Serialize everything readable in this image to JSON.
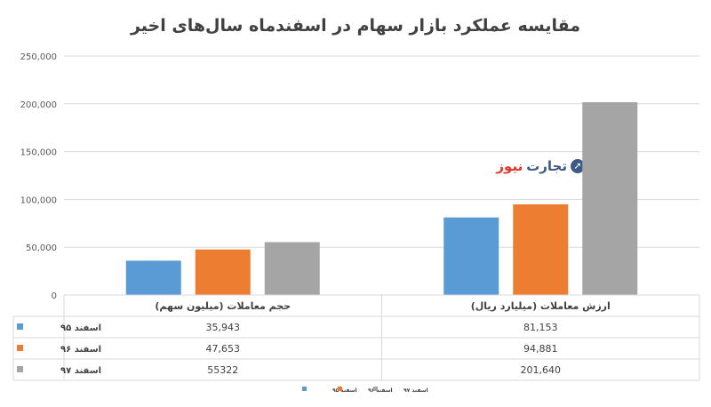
{
  "chart_data": {
    "type": "bar",
    "title": "مقایسه عملکرد بازار سهام در اسفندماه سال‌های اخیر",
    "categories": [
      "ارزش معاملات (میلیارد ریال)",
      "حجم معاملات (میلیون سهم)"
    ],
    "series": [
      {
        "name": "اسفند ۹۵",
        "color": "#5b9bd5",
        "values": [
          81153,
          35943
        ],
        "labels": [
          "81,153",
          "35,943"
        ]
      },
      {
        "name": "اسفند ۹۶",
        "color": "#ed7d31",
        "values": [
          94881,
          47653
        ],
        "labels": [
          "94,881",
          "47,653"
        ]
      },
      {
        "name": "اسفند ۹۷",
        "color": "#a5a5a5",
        "values": [
          201640,
          55322
        ],
        "labels": [
          "201,640",
          "55322"
        ]
      }
    ],
    "ylim": [
      0,
      250000
    ],
    "yticks": [
      0,
      50000,
      100000,
      150000,
      200000,
      250000
    ],
    "ytick_labels": [
      "0",
      "50,000",
      "100,000",
      "150,000",
      "200,000",
      "250,000"
    ],
    "grid": true,
    "legend_position": "bottom",
    "data_table": true
  },
  "logo": {
    "text_part1": "تجارت",
    "text_part2": "نیوز"
  }
}
